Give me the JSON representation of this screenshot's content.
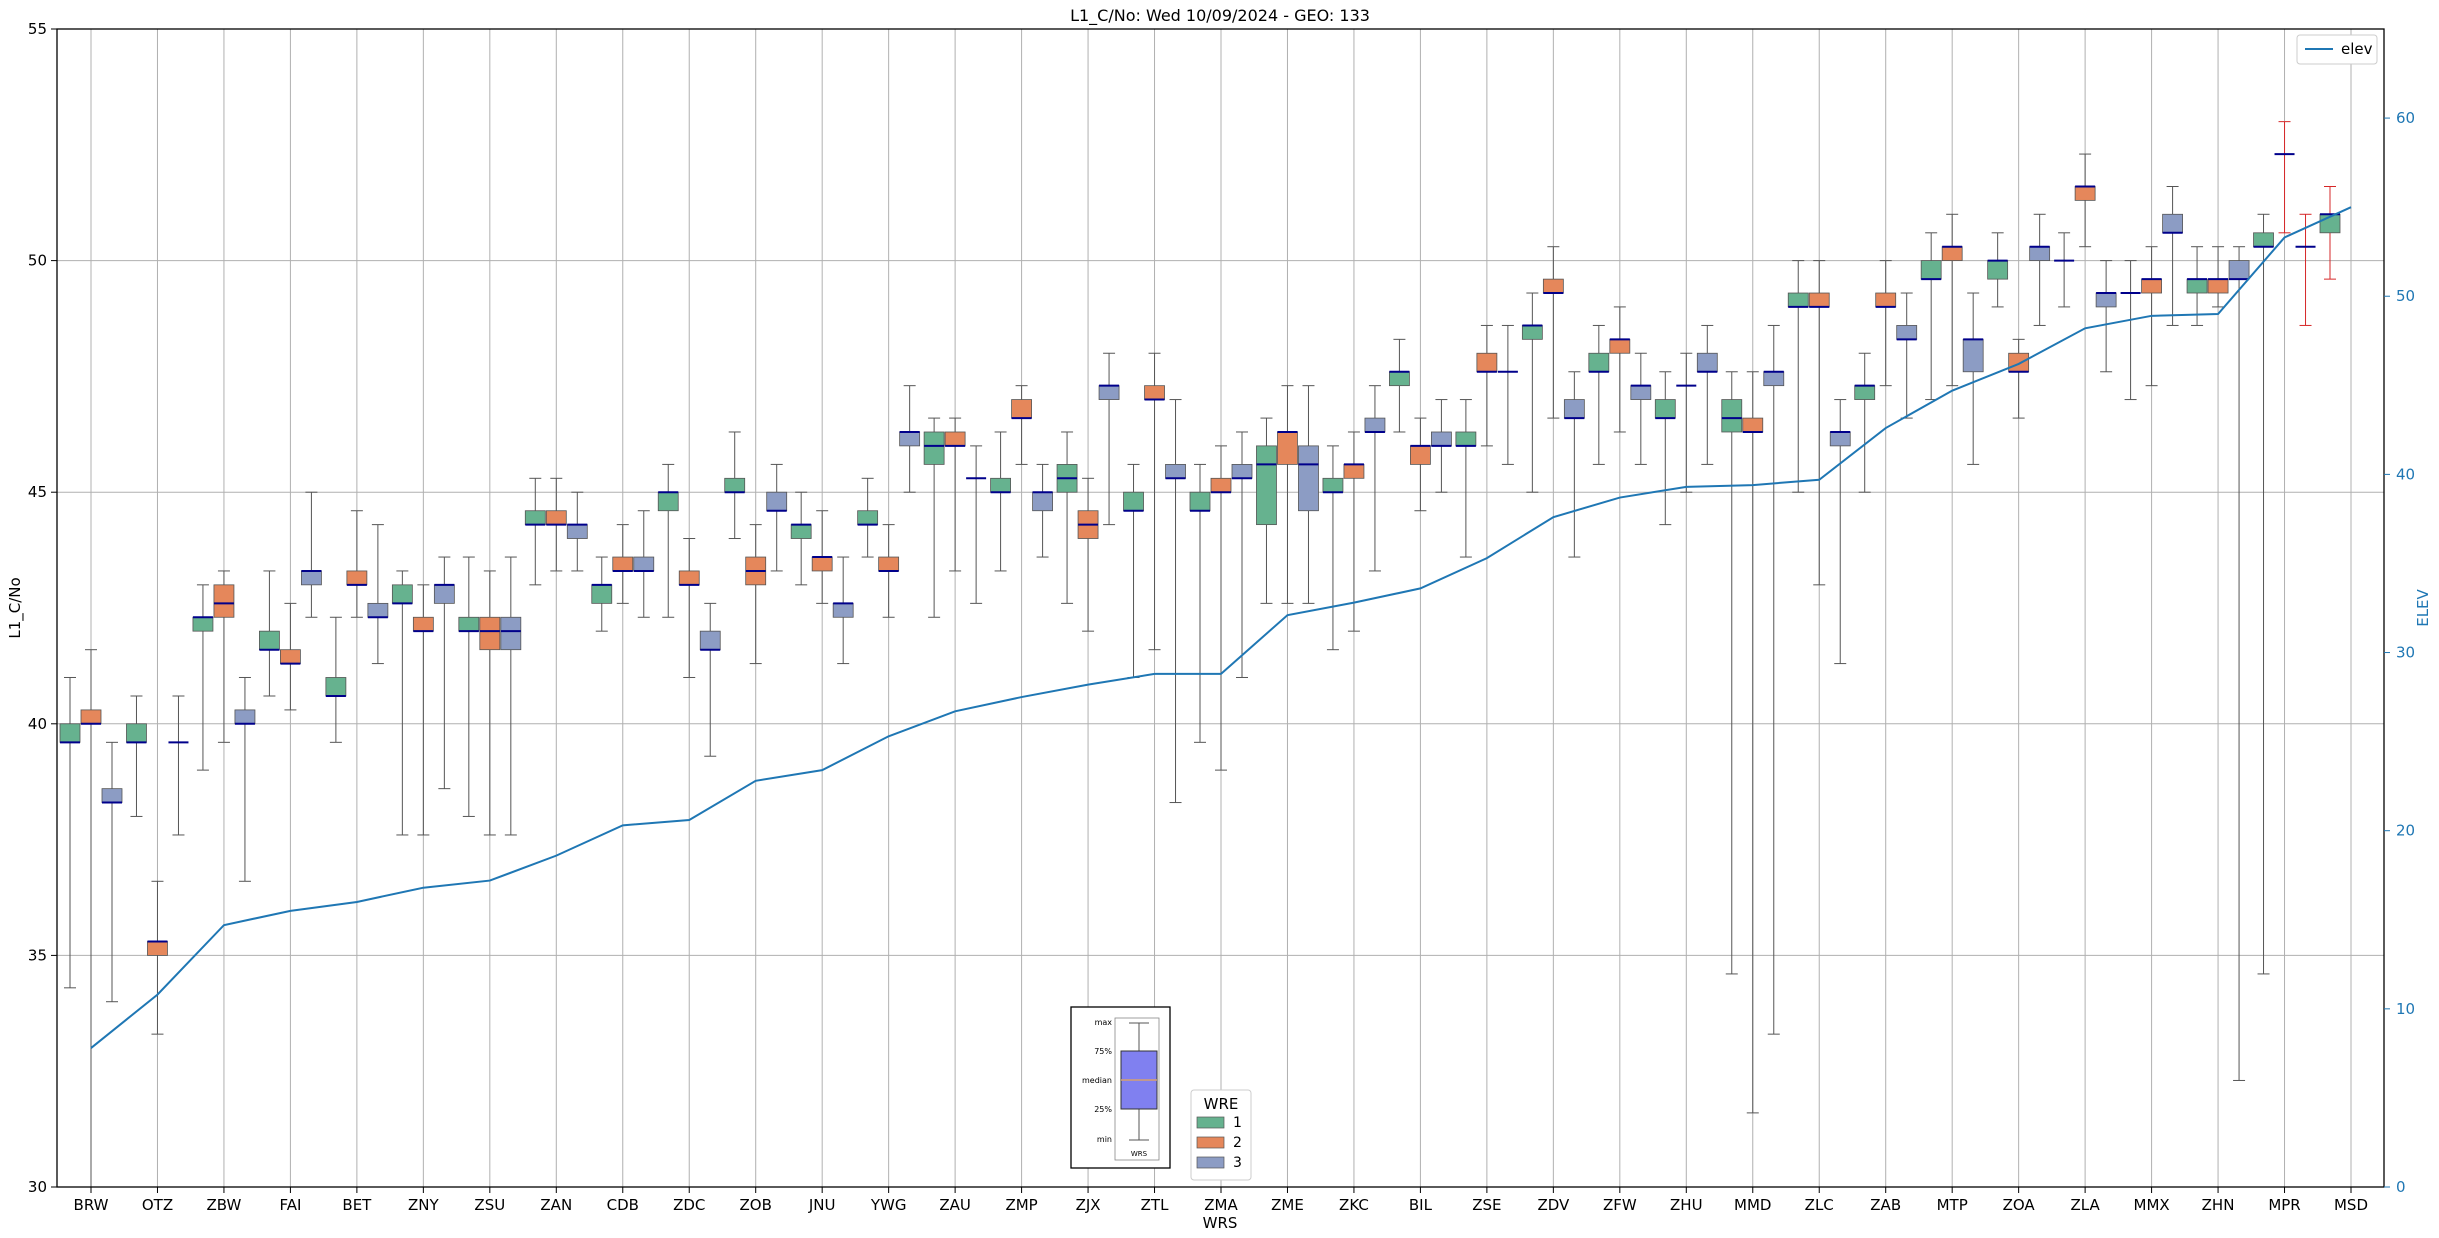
{
  "chart_data": {
    "type": "box",
    "title": "L1_C/No: Wed 10/09/2024 - GEO: 133",
    "xlabel": "WRS",
    "ylabel": "L1_C/No",
    "y2label": "ELEV",
    "ylim": [
      30,
      55
    ],
    "y2lim": [
      0,
      65
    ],
    "yticks": [
      "30",
      "35",
      "40",
      "45",
      "50",
      "55"
    ],
    "y2ticks": [
      "0",
      "10",
      "20",
      "30",
      "40",
      "50",
      "60"
    ],
    "grid": true,
    "colors": {
      "1": "#66b28f",
      "2": "#e5875b",
      "3": "#8c9cc4",
      "median": "#00008b",
      "elev": "#1f77b4",
      "whisker": "#555555",
      "alert": "#d62728"
    },
    "categories": [
      "BRW",
      "OTZ",
      "ZBW",
      "FAI",
      "BET",
      "ZNY",
      "ZSU",
      "ZAN",
      "CDB",
      "ZDC",
      "ZOB",
      "JNU",
      "YWG",
      "ZAU",
      "ZMP",
      "ZJX",
      "ZTL",
      "ZMA",
      "ZME",
      "ZKC",
      "BIL",
      "ZSE",
      "ZDV",
      "ZFW",
      "ZHU",
      "MMD",
      "ZLC",
      "ZAB",
      "MTP",
      "ZOA",
      "ZLA",
      "MMX",
      "ZHN",
      "MPR",
      "MSD"
    ],
    "boxes": [
      {
        "cat": "BRW",
        "wre": 1,
        "min": 34.3,
        "q1": 39.6,
        "med": 39.6,
        "q3": 40.0,
        "max": 41.0
      },
      {
        "cat": "BRW",
        "wre": 2,
        "min": 30.0,
        "q1": 40.0,
        "med": 40.0,
        "q3": 40.3,
        "max": 41.6
      },
      {
        "cat": "BRW",
        "wre": 3,
        "min": 34.0,
        "q1": 38.3,
        "med": 38.3,
        "q3": 38.6,
        "max": 39.6
      },
      {
        "cat": "OTZ",
        "wre": 1,
        "min": 38.0,
        "q1": 39.6,
        "med": 39.6,
        "q3": 40.0,
        "max": 40.6
      },
      {
        "cat": "OTZ",
        "wre": 2,
        "min": 33.3,
        "q1": 35.0,
        "med": 35.3,
        "q3": 35.3,
        "max": 36.6
      },
      {
        "cat": "OTZ",
        "wre": 3,
        "min": 37.6,
        "q1": 39.6,
        "med": 39.6,
        "q3": 39.6,
        "max": 40.6
      },
      {
        "cat": "ZBW",
        "wre": 1,
        "min": 39.0,
        "q1": 42.0,
        "med": 42.3,
        "q3": 42.3,
        "max": 43.0
      },
      {
        "cat": "ZBW",
        "wre": 2,
        "min": 39.6,
        "q1": 42.3,
        "med": 42.6,
        "q3": 43.0,
        "max": 43.3
      },
      {
        "cat": "ZBW",
        "wre": 3,
        "min": 36.6,
        "q1": 40.0,
        "med": 40.0,
        "q3": 40.3,
        "max": 41.0
      },
      {
        "cat": "FAI",
        "wre": 1,
        "min": 40.6,
        "q1": 41.6,
        "med": 41.6,
        "q3": 42.0,
        "max": 43.3
      },
      {
        "cat": "FAI",
        "wre": 2,
        "min": 40.3,
        "q1": 41.3,
        "med": 41.3,
        "q3": 41.6,
        "max": 42.6
      },
      {
        "cat": "FAI",
        "wre": 3,
        "min": 42.3,
        "q1": 43.0,
        "med": 43.3,
        "q3": 43.3,
        "max": 45.0
      },
      {
        "cat": "BET",
        "wre": 1,
        "min": 39.6,
        "q1": 40.6,
        "med": 40.6,
        "q3": 41.0,
        "max": 42.3
      },
      {
        "cat": "BET",
        "wre": 2,
        "min": 42.3,
        "q1": 43.0,
        "med": 43.0,
        "q3": 43.3,
        "max": 44.6
      },
      {
        "cat": "BET",
        "wre": 3,
        "min": 41.3,
        "q1": 42.3,
        "med": 42.3,
        "q3": 42.6,
        "max": 44.3
      },
      {
        "cat": "ZNY",
        "wre": 1,
        "min": 37.6,
        "q1": 42.6,
        "med": 42.6,
        "q3": 43.0,
        "max": 43.3
      },
      {
        "cat": "ZNY",
        "wre": 2,
        "min": 37.6,
        "q1": 42.0,
        "med": 42.0,
        "q3": 42.3,
        "max": 43.0
      },
      {
        "cat": "ZNY",
        "wre": 3,
        "min": 38.6,
        "q1": 42.6,
        "med": 43.0,
        "q3": 43.0,
        "max": 43.6
      },
      {
        "cat": "ZSU",
        "wre": 1,
        "min": 38.0,
        "q1": 42.0,
        "med": 42.0,
        "q3": 42.3,
        "max": 43.6
      },
      {
        "cat": "ZSU",
        "wre": 2,
        "min": 37.6,
        "q1": 41.6,
        "med": 42.0,
        "q3": 42.3,
        "max": 43.3
      },
      {
        "cat": "ZSU",
        "wre": 3,
        "min": 37.6,
        "q1": 41.6,
        "med": 42.0,
        "q3": 42.3,
        "max": 43.6
      },
      {
        "cat": "ZAN",
        "wre": 1,
        "min": 43.0,
        "q1": 44.3,
        "med": 44.3,
        "q3": 44.6,
        "max": 45.3
      },
      {
        "cat": "ZAN",
        "wre": 2,
        "min": 43.3,
        "q1": 44.3,
        "med": 44.3,
        "q3": 44.6,
        "max": 45.3
      },
      {
        "cat": "ZAN",
        "wre": 3,
        "min": 43.3,
        "q1": 44.0,
        "med": 44.3,
        "q3": 44.3,
        "max": 45.0
      },
      {
        "cat": "CDB",
        "wre": 1,
        "min": 42.0,
        "q1": 42.6,
        "med": 43.0,
        "q3": 43.0,
        "max": 43.6
      },
      {
        "cat": "CDB",
        "wre": 2,
        "min": 42.6,
        "q1": 43.3,
        "med": 43.3,
        "q3": 43.6,
        "max": 44.3
      },
      {
        "cat": "CDB",
        "wre": 3,
        "min": 42.3,
        "q1": 43.3,
        "med": 43.3,
        "q3": 43.6,
        "max": 44.6
      },
      {
        "cat": "ZDC",
        "wre": 1,
        "min": 42.3,
        "q1": 44.6,
        "med": 45.0,
        "q3": 45.0,
        "max": 45.6
      },
      {
        "cat": "ZDC",
        "wre": 2,
        "min": 41.0,
        "q1": 43.0,
        "med": 43.0,
        "q3": 43.3,
        "max": 44.0
      },
      {
        "cat": "ZDC",
        "wre": 3,
        "min": 39.3,
        "q1": 41.6,
        "med": 41.6,
        "q3": 42.0,
        "max": 42.6
      },
      {
        "cat": "ZOB",
        "wre": 1,
        "min": 44.0,
        "q1": 45.0,
        "med": 45.0,
        "q3": 45.3,
        "max": 46.3
      },
      {
        "cat": "ZOB",
        "wre": 2,
        "min": 41.3,
        "q1": 43.0,
        "med": 43.3,
        "q3": 43.6,
        "max": 44.3
      },
      {
        "cat": "ZOB",
        "wre": 3,
        "min": 43.3,
        "q1": 44.6,
        "med": 44.6,
        "q3": 45.0,
        "max": 45.6
      },
      {
        "cat": "JNU",
        "wre": 1,
        "min": 43.0,
        "q1": 44.0,
        "med": 44.3,
        "q3": 44.3,
        "max": 45.0
      },
      {
        "cat": "JNU",
        "wre": 2,
        "min": 42.6,
        "q1": 43.3,
        "med": 43.6,
        "q3": 43.6,
        "max": 44.6
      },
      {
        "cat": "JNU",
        "wre": 3,
        "min": 41.3,
        "q1": 42.3,
        "med": 42.6,
        "q3": 42.6,
        "max": 43.6
      },
      {
        "cat": "YWG",
        "wre": 1,
        "min": 43.6,
        "q1": 44.3,
        "med": 44.3,
        "q3": 44.6,
        "max": 45.3
      },
      {
        "cat": "YWG",
        "wre": 2,
        "min": 42.3,
        "q1": 43.3,
        "med": 43.3,
        "q3": 43.6,
        "max": 44.3
      },
      {
        "cat": "YWG",
        "wre": 3,
        "min": 45.0,
        "q1": 46.0,
        "med": 46.3,
        "q3": 46.3,
        "max": 47.3
      },
      {
        "cat": "ZAU",
        "wre": 1,
        "min": 42.3,
        "q1": 45.6,
        "med": 46.0,
        "q3": 46.3,
        "max": 46.6
      },
      {
        "cat": "ZAU",
        "wre": 2,
        "min": 43.3,
        "q1": 46.0,
        "med": 46.0,
        "q3": 46.3,
        "max": 46.6
      },
      {
        "cat": "ZAU",
        "wre": 3,
        "min": 42.6,
        "q1": 45.3,
        "med": 45.3,
        "q3": 45.3,
        "max": 46.0
      },
      {
        "cat": "ZMP",
        "wre": 1,
        "min": 43.3,
        "q1": 45.0,
        "med": 45.0,
        "q3": 45.3,
        "max": 46.3
      },
      {
        "cat": "ZMP",
        "wre": 2,
        "min": 45.6,
        "q1": 46.6,
        "med": 46.6,
        "q3": 47.0,
        "max": 47.3
      },
      {
        "cat": "ZMP",
        "wre": 3,
        "min": 43.6,
        "q1": 44.6,
        "med": 45.0,
        "q3": 45.0,
        "max": 45.6
      },
      {
        "cat": "ZJX",
        "wre": 1,
        "min": 42.6,
        "q1": 45.0,
        "med": 45.3,
        "q3": 45.6,
        "max": 46.3
      },
      {
        "cat": "ZJX",
        "wre": 2,
        "min": 42.0,
        "q1": 44.0,
        "med": 44.3,
        "q3": 44.6,
        "max": 45.3
      },
      {
        "cat": "ZJX",
        "wre": 3,
        "min": 44.3,
        "q1": 47.0,
        "med": 47.3,
        "q3": 47.3,
        "max": 48.0
      },
      {
        "cat": "ZTL",
        "wre": 1,
        "min": 41.0,
        "q1": 44.6,
        "med": 44.6,
        "q3": 45.0,
        "max": 45.6
      },
      {
        "cat": "ZTL",
        "wre": 2,
        "min": 41.6,
        "q1": 47.0,
        "med": 47.0,
        "q3": 47.3,
        "max": 48.0
      },
      {
        "cat": "ZTL",
        "wre": 3,
        "min": 38.3,
        "q1": 45.3,
        "med": 45.3,
        "q3": 45.6,
        "max": 47.0
      },
      {
        "cat": "ZMA",
        "wre": 1,
        "min": 39.6,
        "q1": 44.6,
        "med": 44.6,
        "q3": 45.0,
        "max": 45.6
      },
      {
        "cat": "ZMA",
        "wre": 2,
        "min": 39.0,
        "q1": 45.0,
        "med": 45.0,
        "q3": 45.3,
        "max": 46.0
      },
      {
        "cat": "ZMA",
        "wre": 3,
        "min": 41.0,
        "q1": 45.3,
        "med": 45.3,
        "q3": 45.6,
        "max": 46.3
      },
      {
        "cat": "ZME",
        "wre": 1,
        "min": 42.6,
        "q1": 44.3,
        "med": 45.6,
        "q3": 46.0,
        "max": 46.6
      },
      {
        "cat": "ZME",
        "wre": 2,
        "min": 42.6,
        "q1": 45.6,
        "med": 46.3,
        "q3": 46.3,
        "max": 47.3
      },
      {
        "cat": "ZME",
        "wre": 3,
        "min": 42.6,
        "q1": 44.6,
        "med": 45.6,
        "q3": 46.0,
        "max": 47.3
      },
      {
        "cat": "ZKC",
        "wre": 1,
        "min": 41.6,
        "q1": 45.0,
        "med": 45.0,
        "q3": 45.3,
        "max": 46.0
      },
      {
        "cat": "ZKC",
        "wre": 2,
        "min": 42.0,
        "q1": 45.3,
        "med": 45.6,
        "q3": 45.6,
        "max": 46.3
      },
      {
        "cat": "ZKC",
        "wre": 3,
        "min": 43.3,
        "q1": 46.3,
        "med": 46.3,
        "q3": 46.6,
        "max": 47.3
      },
      {
        "cat": "BIL",
        "wre": 1,
        "min": 46.3,
        "q1": 47.3,
        "med": 47.6,
        "q3": 47.6,
        "max": 48.3
      },
      {
        "cat": "BIL",
        "wre": 2,
        "min": 44.6,
        "q1": 45.6,
        "med": 46.0,
        "q3": 46.0,
        "max": 46.6
      },
      {
        "cat": "BIL",
        "wre": 3,
        "min": 45.0,
        "q1": 46.0,
        "med": 46.0,
        "q3": 46.3,
        "max": 47.0
      },
      {
        "cat": "ZSE",
        "wre": 1,
        "min": 43.6,
        "q1": 46.0,
        "med": 46.0,
        "q3": 46.3,
        "max": 47.0
      },
      {
        "cat": "ZSE",
        "wre": 2,
        "min": 46.0,
        "q1": 47.6,
        "med": 47.6,
        "q3": 48.0,
        "max": 48.6
      },
      {
        "cat": "ZSE",
        "wre": 3,
        "min": 45.6,
        "q1": 47.6,
        "med": 47.6,
        "q3": 47.6,
        "max": 48.6
      },
      {
        "cat": "ZDV",
        "wre": 1,
        "min": 45.0,
        "q1": 48.3,
        "med": 48.6,
        "q3": 48.6,
        "max": 49.3
      },
      {
        "cat": "ZDV",
        "wre": 2,
        "min": 46.6,
        "q1": 49.3,
        "med": 49.3,
        "q3": 49.6,
        "max": 50.3
      },
      {
        "cat": "ZDV",
        "wre": 3,
        "min": 43.6,
        "q1": 46.6,
        "med": 46.6,
        "q3": 47.0,
        "max": 47.6
      },
      {
        "cat": "ZFW",
        "wre": 1,
        "min": 45.6,
        "q1": 47.6,
        "med": 47.6,
        "q3": 48.0,
        "max": 48.6
      },
      {
        "cat": "ZFW",
        "wre": 2,
        "min": 46.3,
        "q1": 48.0,
        "med": 48.3,
        "q3": 48.3,
        "max": 49.0
      },
      {
        "cat": "ZFW",
        "wre": 3,
        "min": 45.6,
        "q1": 47.0,
        "med": 47.3,
        "q3": 47.3,
        "max": 48.0
      },
      {
        "cat": "ZHU",
        "wre": 1,
        "min": 44.3,
        "q1": 46.6,
        "med": 46.6,
        "q3": 47.0,
        "max": 47.6
      },
      {
        "cat": "ZHU",
        "wre": 2,
        "min": 45.0,
        "q1": 47.3,
        "med": 47.3,
        "q3": 47.3,
        "max": 48.0
      },
      {
        "cat": "ZHU",
        "wre": 3,
        "min": 45.6,
        "q1": 47.6,
        "med": 47.6,
        "q3": 48.0,
        "max": 48.6
      },
      {
        "cat": "MMD",
        "wre": 1,
        "min": 34.6,
        "q1": 46.3,
        "med": 46.6,
        "q3": 47.0,
        "max": 47.6
      },
      {
        "cat": "MMD",
        "wre": 2,
        "min": 31.6,
        "q1": 46.3,
        "med": 46.3,
        "q3": 46.6,
        "max": 47.6
      },
      {
        "cat": "MMD",
        "wre": 3,
        "min": 33.3,
        "q1": 47.3,
        "med": 47.6,
        "q3": 47.6,
        "max": 48.6
      },
      {
        "cat": "ZLC",
        "wre": 1,
        "min": 45.0,
        "q1": 49.0,
        "med": 49.0,
        "q3": 49.3,
        "max": 50.0
      },
      {
        "cat": "ZLC",
        "wre": 2,
        "min": 43.0,
        "q1": 49.0,
        "med": 49.0,
        "q3": 49.3,
        "max": 50.0
      },
      {
        "cat": "ZLC",
        "wre": 3,
        "min": 41.3,
        "q1": 46.0,
        "med": 46.3,
        "q3": 46.3,
        "max": 47.0
      },
      {
        "cat": "ZAB",
        "wre": 1,
        "min": 45.0,
        "q1": 47.0,
        "med": 47.3,
        "q3": 47.3,
        "max": 48.0
      },
      {
        "cat": "ZAB",
        "wre": 2,
        "min": 47.3,
        "q1": 49.0,
        "med": 49.0,
        "q3": 49.3,
        "max": 50.0
      },
      {
        "cat": "ZAB",
        "wre": 3,
        "min": 46.6,
        "q1": 48.3,
        "med": 48.3,
        "q3": 48.6,
        "max": 49.3
      },
      {
        "cat": "MTP",
        "wre": 1,
        "min": 47.0,
        "q1": 49.6,
        "med": 49.6,
        "q3": 50.0,
        "max": 50.6
      },
      {
        "cat": "MTP",
        "wre": 2,
        "min": 47.3,
        "q1": 50.0,
        "med": 50.3,
        "q3": 50.3,
        "max": 51.0
      },
      {
        "cat": "MTP",
        "wre": 3,
        "min": 45.6,
        "q1": 47.6,
        "med": 48.3,
        "q3": 48.3,
        "max": 49.3
      },
      {
        "cat": "ZOA",
        "wre": 1,
        "min": 49.0,
        "q1": 49.6,
        "med": 50.0,
        "q3": 50.0,
        "max": 50.6
      },
      {
        "cat": "ZOA",
        "wre": 2,
        "min": 46.6,
        "q1": 47.6,
        "med": 47.6,
        "q3": 48.0,
        "max": 48.3
      },
      {
        "cat": "ZOA",
        "wre": 3,
        "min": 48.6,
        "q1": 50.0,
        "med": 50.3,
        "q3": 50.3,
        "max": 51.0
      },
      {
        "cat": "ZLA",
        "wre": 1,
        "min": 49.0,
        "q1": 50.0,
        "med": 50.0,
        "q3": 50.0,
        "max": 50.6
      },
      {
        "cat": "ZLA",
        "wre": 2,
        "min": 50.3,
        "q1": 51.3,
        "med": 51.6,
        "q3": 51.6,
        "max": 52.3
      },
      {
        "cat": "ZLA",
        "wre": 3,
        "min": 47.6,
        "q1": 49.0,
        "med": 49.3,
        "q3": 49.3,
        "max": 50.0
      },
      {
        "cat": "MMX",
        "wre": 1,
        "min": 47.0,
        "q1": 49.3,
        "med": 49.3,
        "q3": 49.3,
        "max": 50.0
      },
      {
        "cat": "MMX",
        "wre": 2,
        "min": 47.3,
        "q1": 49.3,
        "med": 49.6,
        "q3": 49.6,
        "max": 50.3
      },
      {
        "cat": "MMX",
        "wre": 3,
        "min": 48.6,
        "q1": 50.6,
        "med": 50.6,
        "q3": 51.0,
        "max": 51.6
      },
      {
        "cat": "ZHN",
        "wre": 1,
        "min": 48.6,
        "q1": 49.3,
        "med": 49.6,
        "q3": 49.6,
        "max": 50.3
      },
      {
        "cat": "ZHN",
        "wre": 2,
        "min": 49.0,
        "q1": 49.3,
        "med": 49.6,
        "q3": 49.6,
        "max": 50.3
      },
      {
        "cat": "ZHN",
        "wre": 3,
        "min": 32.3,
        "q1": 49.6,
        "med": 49.6,
        "q3": 50.0,
        "max": 50.3
      },
      {
        "cat": "MPR",
        "wre": 1,
        "min": 34.6,
        "q1": 50.3,
        "med": 50.3,
        "q3": 50.6,
        "max": 51.0
      },
      {
        "cat": "MPR",
        "wre": 2,
        "min": 50.6,
        "q1": 52.3,
        "med": 52.3,
        "q3": 52.3,
        "max": 53.0,
        "alert": true
      },
      {
        "cat": "MPR",
        "wre": 3,
        "min": 48.6,
        "q1": 50.3,
        "med": 50.3,
        "q3": 50.3,
        "max": 51.0,
        "alert": true
      },
      {
        "cat": "MSD",
        "wre": 1,
        "min": 49.6,
        "q1": 50.6,
        "med": 51.0,
        "q3": 51.0,
        "max": 51.6,
        "alert": true
      }
    ],
    "elev": {
      "name": "elev",
      "values": [
        7.8,
        10.8,
        14.7,
        15.5,
        16.0,
        16.8,
        17.2,
        18.6,
        20.3,
        20.6,
        22.8,
        23.4,
        25.3,
        26.7,
        27.5,
        28.2,
        28.8,
        28.8,
        32.1,
        32.8,
        33.6,
        35.3,
        37.6,
        38.7,
        39.3,
        39.4,
        39.7,
        42.6,
        44.7,
        46.2,
        48.2,
        48.9,
        49.0,
        53.3,
        55.0
      ]
    },
    "legend": {
      "elev": {
        "label": "elev",
        "position": "top-right"
      },
      "wre": {
        "title": "WRE",
        "items": [
          "1",
          "2",
          "3"
        ],
        "position": "bottom-center"
      }
    },
    "inset_key": {
      "labels": [
        "max",
        "75%",
        "median",
        "25%",
        "min"
      ],
      "xlabel": "WRS"
    }
  }
}
